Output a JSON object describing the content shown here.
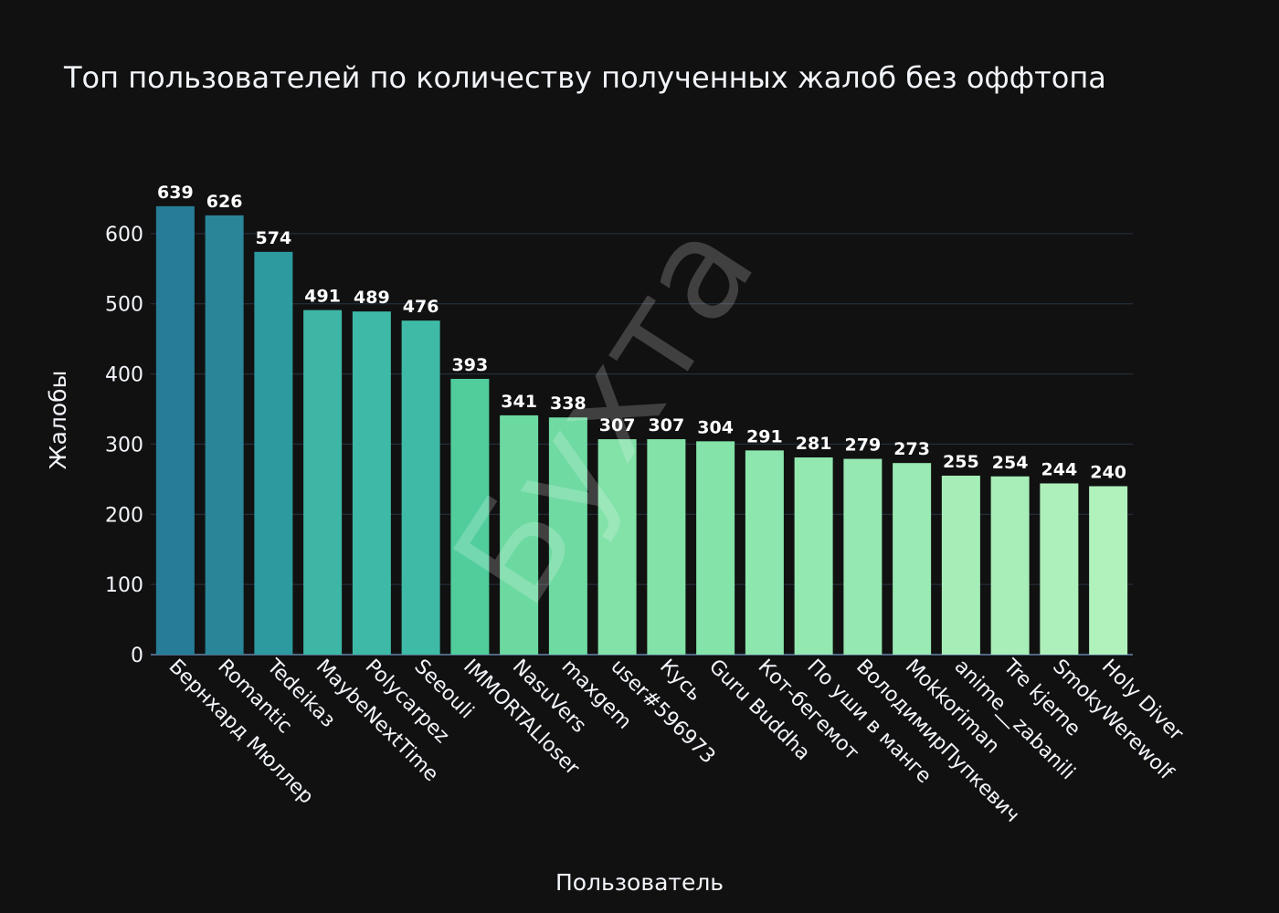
{
  "chart_data": {
    "type": "bar",
    "title": "Топ пользователей по количеству полученных жалоб без оффтопа",
    "xlabel": "Пользователь",
    "ylabel": "Жалобы",
    "ylim": [
      0,
      700
    ],
    "yticks": [
      0,
      100,
      200,
      300,
      400,
      500,
      600
    ],
    "grid": true,
    "watermark": "Бухта",
    "categories": [
      "Бернхард Мюллер",
      "Romantic",
      "Tedeikaз",
      "MaybeNextTime",
      "Polycarpez",
      "Seeouli",
      "IMMORTALloser",
      "NasuVers",
      "maxgem",
      "user#596973",
      "Кусь",
      "Guru Buddha",
      "Кот-бегемот",
      "По уши в манге",
      "ВолодимирПупкевич",
      "Mokkoriman",
      "anime__zabanili",
      "Tre kjerne",
      "SmokyWerewolf",
      "Holy Diver"
    ],
    "values": [
      639,
      626,
      574,
      491,
      489,
      476,
      393,
      341,
      338,
      307,
      307,
      304,
      291,
      281,
      279,
      273,
      255,
      254,
      244,
      240
    ],
    "colors": [
      "#277c97",
      "#2a8599",
      "#2d9aa0",
      "#3db6a5",
      "#3eb9a7",
      "#3fbaa6",
      "#50cd9b",
      "#6cd9a0",
      "#6fdaa2",
      "#82e2a8",
      "#82e2a8",
      "#84e3a9",
      "#8de6ad",
      "#93e8b0",
      "#95e8b1",
      "#9aeab3",
      "#a6eeb8",
      "#a7eeb8",
      "#aef0bb",
      "#b0f1bc"
    ]
  }
}
